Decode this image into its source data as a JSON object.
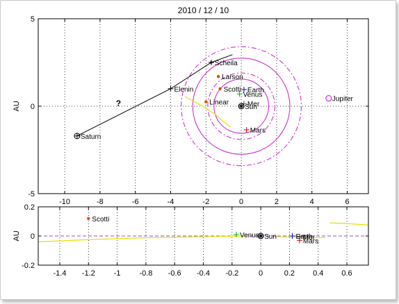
{
  "chart_data": [
    {
      "type": "scatter",
      "title": "2010 / 12 / 10",
      "xlabel": "",
      "ylabel": "AU",
      "xlim": [
        -11.5,
        7.2
      ],
      "ylim": [
        -5,
        5
      ],
      "xticks": [
        -10,
        -8,
        -6,
        -4,
        -2,
        0,
        2,
        4,
        6
      ],
      "yticks": [
        -5,
        0,
        5
      ],
      "grid": true,
      "annotation": "?",
      "bodies": [
        {
          "name": "Saturn",
          "x": -9.3,
          "y": -1.7,
          "marker": "circle-plus",
          "color": "#000000"
        },
        {
          "name": "Elenin",
          "x": -4.0,
          "y": 1.0,
          "marker": "plus",
          "color": "#000000"
        },
        {
          "name": "Scheila",
          "x": -1.7,
          "y": 2.5,
          "marker": "plus-dot",
          "color": "#000000"
        },
        {
          "name": "Larson",
          "x": -1.3,
          "y": 1.7,
          "marker": "dot",
          "color": "#d94c00"
        },
        {
          "name": "Scotti",
          "x": -1.2,
          "y": 1.0,
          "marker": "dot",
          "color": "#d94c00"
        },
        {
          "name": "Linear",
          "x": -2.0,
          "y": 0.25,
          "marker": "dot",
          "color": "#d94c00"
        },
        {
          "name": "Earth",
          "x": 0.15,
          "y": 0.95,
          "marker": "plus",
          "color": "#0000cc"
        },
        {
          "name": "Venus",
          "x": -0.1,
          "y": 0.7,
          "marker": "plus",
          "color": "#00aa00"
        },
        {
          "name": "Mer",
          "x": 0.15,
          "y": 0.15,
          "marker": "plus",
          "color": "#555555"
        },
        {
          "name": "Sun",
          "x": 0.0,
          "y": 0.0,
          "marker": "circle-star",
          "color": "#000000"
        },
        {
          "name": "Mars",
          "x": 0.3,
          "y": -1.35,
          "marker": "plus",
          "color": "#cc0000"
        },
        {
          "name": "Jupiter",
          "x": 4.95,
          "y": 0.45,
          "marker": "circle",
          "color": "#cc00cc"
        }
      ],
      "orbits": [
        {
          "name": "inner-solid",
          "radius": 1.55,
          "color": "#cc33cc",
          "style": "solid"
        },
        {
          "name": "middle-solid",
          "radius": 2.75,
          "color": "#cc33cc",
          "style": "solid"
        },
        {
          "name": "inner-dashed",
          "radius": 1.9,
          "color": "#cc33cc",
          "style": "dashdot"
        },
        {
          "name": "outer-dashed",
          "radius": 3.4,
          "color": "#cc33cc",
          "style": "dashdot"
        }
      ],
      "trajectory": [
        [
          -9.3,
          -1.7
        ],
        [
          -4.0,
          1.0
        ],
        [
          -1.7,
          2.5
        ],
        [
          -0.5,
          2.95
        ]
      ],
      "yellow_path": [
        [
          -3.2,
          0.55
        ],
        [
          -2.2,
          0.0
        ],
        [
          -1.5,
          -0.45
        ],
        [
          -1.0,
          -0.9
        ],
        [
          -0.6,
          -1.2
        ]
      ]
    },
    {
      "type": "scatter",
      "title": "",
      "xlabel": "",
      "ylabel": "AU",
      "xlim": [
        -1.55,
        0.75
      ],
      "ylim": [
        -0.2,
        0.2
      ],
      "xticks": [
        -1.4,
        -1.2,
        -1,
        -0.8,
        -0.6,
        -0.4,
        -0.2,
        0,
        0.2,
        0.4,
        0.6
      ],
      "yticks": [
        -0.2,
        0,
        0.2
      ],
      "grid": true,
      "bodies": [
        {
          "name": "Scotti",
          "x": -1.2,
          "y": 0.12,
          "marker": "dot",
          "color": "#d94c00"
        },
        {
          "name": "Venus",
          "x": -0.17,
          "y": 0.01,
          "marker": "plus",
          "color": "#00aa00"
        },
        {
          "name": "Sun",
          "x": 0.0,
          "y": 0.0,
          "marker": "circle-star",
          "color": "#000000"
        },
        {
          "name": "Earth",
          "x": 0.22,
          "y": 0.0,
          "marker": "plus",
          "color": "#0000cc"
        },
        {
          "name": "Mer",
          "x": 0.27,
          "y": -0.005,
          "marker": "plus",
          "color": "#555555"
        },
        {
          "name": "Mars",
          "x": 0.27,
          "y": -0.03,
          "marker": "plus",
          "color": "#cc0000"
        }
      ],
      "horizon_line": 0,
      "yellow_paths": [
        [
          [
            -1.55,
            -0.04
          ],
          [
            -1.2,
            -0.025
          ],
          [
            -0.8,
            -0.012
          ],
          [
            -0.4,
            -0.005
          ],
          [
            -0.1,
            0.0
          ]
        ],
        [
          [
            0.48,
            0.09
          ],
          [
            0.6,
            0.085
          ],
          [
            0.75,
            0.075
          ]
        ],
        [
          [
            0.1,
            -0.005
          ],
          [
            0.3,
            -0.01
          ],
          [
            0.45,
            -0.012
          ]
        ]
      ]
    }
  ]
}
